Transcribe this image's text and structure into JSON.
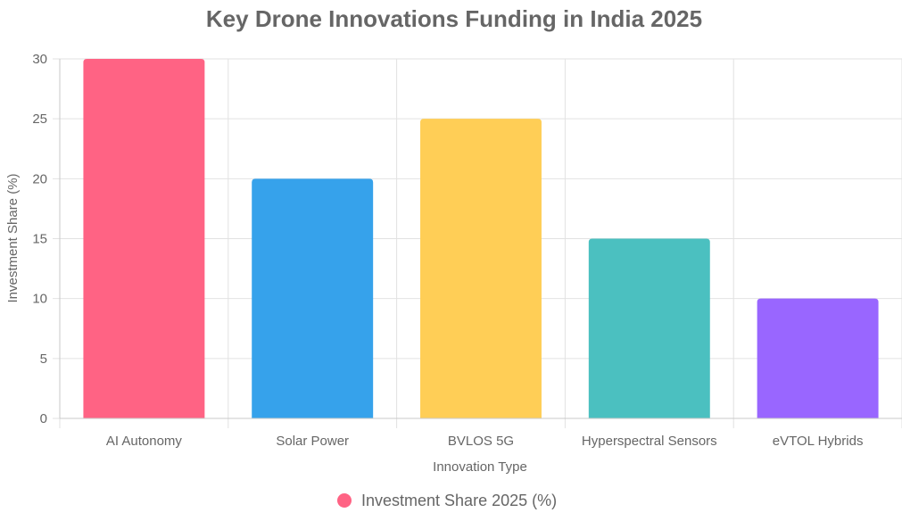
{
  "colors": {
    "text": "#666666",
    "grid": "#e2e2e2",
    "axis": "#c9c9c9"
  },
  "chart_data": {
    "type": "bar",
    "title": "Key Drone Innovations Funding in India 2025",
    "xlabel": "Innovation Type",
    "ylabel": "Investment Share (%)",
    "ylim": [
      0,
      30
    ],
    "y_ticks": [
      "0",
      "5",
      "10",
      "15",
      "20",
      "25",
      "30"
    ],
    "y_tick_values": [
      0,
      5,
      10,
      15,
      20,
      25,
      30
    ],
    "categories": [
      "AI Autonomy",
      "Solar Power",
      "BVLOS 5G",
      "Hyperspectral Sensors",
      "eVTOL Hybrids"
    ],
    "series": [
      {
        "name": "Investment Share 2025 (%)",
        "values": [
          30,
          20,
          25,
          15,
          10
        ],
        "colors": [
          "#ff6384",
          "#36a2eb",
          "#ffce56",
          "#4bc0c0",
          "#9966ff"
        ]
      }
    ],
    "legend": {
      "position": "bottom",
      "label": "Investment Share 2025 (%)",
      "marker_color": "#ff6384"
    },
    "grid": true
  }
}
